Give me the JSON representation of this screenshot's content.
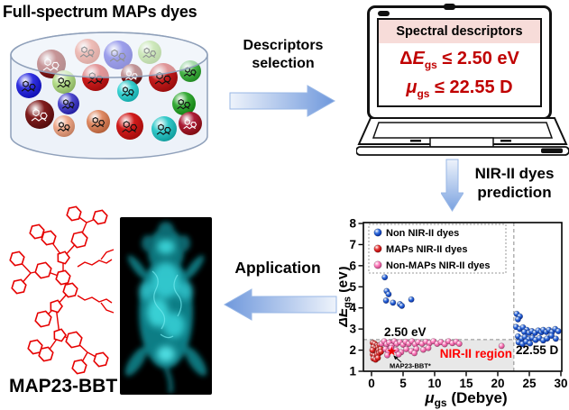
{
  "title": "Full-spectrum MAPs dyes",
  "flow": {
    "step1": {
      "line1": "Descriptors",
      "line2": "selection"
    },
    "step2": {
      "line1": "NIR-II dyes",
      "line2": "prediction"
    },
    "step3": {
      "label": "Application"
    }
  },
  "laptop": {
    "header": "Spectral descriptors",
    "header_bg": "#f7dcd9",
    "text_color": "#c00000",
    "criteria": [
      {
        "lead": "Δ",
        "symbol": "E",
        "sub": "gs",
        "rest": " ≤ 2.50 eV"
      },
      {
        "lead": "",
        "symbol": "μ",
        "sub": "gs",
        "rest": " ≤ 22.55 D"
      }
    ]
  },
  "molecule": {
    "label": "MAP23-BBT",
    "color": "#e60000"
  },
  "dye_pool": {
    "ball_colors": [
      "#8a1212",
      "#e5705e",
      "#2a2ad6",
      "#9cd468",
      "#2a2ae0",
      "#b4dd88",
      "#cc1414",
      "#7f1010",
      "#c41414",
      "#46b446",
      "#33aa33",
      "#7c1414",
      "#4a44cc",
      "#f0a888",
      "#38d4d4",
      "#e08860",
      "#d01212",
      "#2cc8c8",
      "#aa1430"
    ]
  },
  "chart_data": {
    "type": "scatter",
    "xlabel": {
      "symbol": "μ",
      "sub": "gs",
      "rest": " (Debye)"
    },
    "ylabel": {
      "symbol": "ΔE",
      "sub": "gs",
      "rest": " (eV)"
    },
    "xlim": [
      0,
      30
    ],
    "ylim": [
      1,
      8
    ],
    "xticks": [
      0,
      5,
      10,
      15,
      20,
      25,
      30
    ],
    "yticks": [
      1,
      2,
      3,
      4,
      5,
      6,
      7,
      8
    ],
    "grid": false,
    "legend_position": "upper-left",
    "thresholds": {
      "x": 22.55,
      "y": 2.5,
      "x_label": "22.55 D",
      "y_label": "2.50 eV"
    },
    "region_label": "NIR-II region",
    "region_color": "#ff0000",
    "region_fill": "#e8e8e8",
    "star": {
      "x": 3.2,
      "y": 1.95,
      "label": "MAP23-BBT*"
    },
    "series": [
      {
        "name": "Non NIR-II dyes",
        "color": "#2f6bdd",
        "points": [
          [
            2.1,
            5.45
          ],
          [
            2.4,
            4.8
          ],
          [
            2.7,
            4.65
          ],
          [
            2.3,
            4.35
          ],
          [
            3.4,
            4.25
          ],
          [
            4.5,
            4.18
          ],
          [
            4.8,
            4.1
          ],
          [
            6.3,
            4.4
          ],
          [
            23.0,
            3.72
          ],
          [
            23.5,
            3.6
          ],
          [
            23.2,
            3.46
          ],
          [
            22.9,
            3.1
          ],
          [
            23.5,
            3.0
          ],
          [
            24.0,
            3.08
          ],
          [
            24.6,
            2.96
          ],
          [
            24.2,
            2.86
          ],
          [
            24.95,
            2.82
          ],
          [
            25.4,
            2.9
          ],
          [
            25.9,
            2.82
          ],
          [
            26.4,
            2.93
          ],
          [
            26.9,
            2.85
          ],
          [
            27.2,
            2.96
          ],
          [
            27.7,
            2.86
          ],
          [
            28.1,
            2.96
          ],
          [
            28.6,
            2.86
          ],
          [
            29.1,
            3.0
          ],
          [
            29.6,
            2.9
          ],
          [
            23.2,
            2.65
          ],
          [
            23.8,
            2.54
          ],
          [
            24.3,
            2.62
          ],
          [
            24.9,
            2.51
          ],
          [
            25.5,
            2.58
          ],
          [
            26.0,
            2.48
          ],
          [
            26.6,
            2.57
          ],
          [
            27.2,
            2.46
          ],
          [
            27.8,
            2.55
          ],
          [
            23.3,
            2.37
          ],
          [
            23.9,
            2.29
          ],
          [
            24.5,
            2.4
          ],
          [
            25.1,
            2.32
          ],
          [
            28.5,
            2.68
          ],
          [
            29.2,
            2.54
          ]
        ]
      },
      {
        "name": "MAPs NIR-II dyes",
        "color": "#e53131",
        "points": [
          [
            0.2,
            2.35
          ],
          [
            0.5,
            2.3
          ],
          [
            0.85,
            2.22
          ],
          [
            0.3,
            2.15
          ],
          [
            0.6,
            2.08
          ],
          [
            1.0,
            2.15
          ],
          [
            1.3,
            2.24
          ],
          [
            0.4,
            1.95
          ],
          [
            0.7,
            1.9
          ],
          [
            1.1,
            2.0
          ],
          [
            1.45,
            2.05
          ],
          [
            0.2,
            1.8
          ],
          [
            0.5,
            1.74
          ],
          [
            0.9,
            1.8
          ],
          [
            1.2,
            1.86
          ],
          [
            0.3,
            1.6
          ],
          [
            0.65,
            1.55
          ],
          [
            1.0,
            1.63
          ],
          [
            0.15,
            2.0
          ],
          [
            1.5,
            1.92
          ]
        ]
      },
      {
        "name": "Non-MAPs NIR-II dyes",
        "color": "#ff7fbe",
        "points": [
          [
            1.6,
            2.3
          ],
          [
            2.0,
            2.42
          ],
          [
            2.4,
            2.28
          ],
          [
            2.8,
            2.36
          ],
          [
            3.2,
            2.2
          ],
          [
            3.6,
            2.42
          ],
          [
            4.0,
            2.3
          ],
          [
            4.5,
            2.38
          ],
          [
            5.0,
            2.26
          ],
          [
            5.4,
            2.4
          ],
          [
            5.9,
            2.3
          ],
          [
            6.4,
            2.42
          ],
          [
            6.9,
            2.28
          ],
          [
            7.4,
            2.38
          ],
          [
            8.0,
            2.3
          ],
          [
            8.6,
            2.4
          ],
          [
            9.2,
            2.33
          ],
          [
            9.8,
            2.42
          ],
          [
            10.4,
            2.3
          ],
          [
            11.0,
            2.38
          ],
          [
            11.6,
            2.28
          ],
          [
            12.2,
            2.42
          ],
          [
            12.8,
            2.33
          ],
          [
            13.4,
            2.4
          ],
          [
            13.9,
            2.3
          ],
          [
            2.2,
            2.05
          ],
          [
            2.7,
            1.95
          ],
          [
            3.1,
            2.1
          ],
          [
            3.9,
            2.0
          ],
          [
            4.7,
            1.9
          ],
          [
            5.5,
            2.05
          ],
          [
            6.3,
            1.95
          ],
          [
            7.1,
            2.06
          ],
          [
            2.5,
            1.76
          ],
          [
            4.3,
            1.8
          ],
          [
            6.8,
            1.86
          ],
          [
            8.2,
            2.02
          ],
          [
            9.0,
            2.1
          ],
          [
            20.6,
            2.2
          ]
        ]
      }
    ]
  }
}
